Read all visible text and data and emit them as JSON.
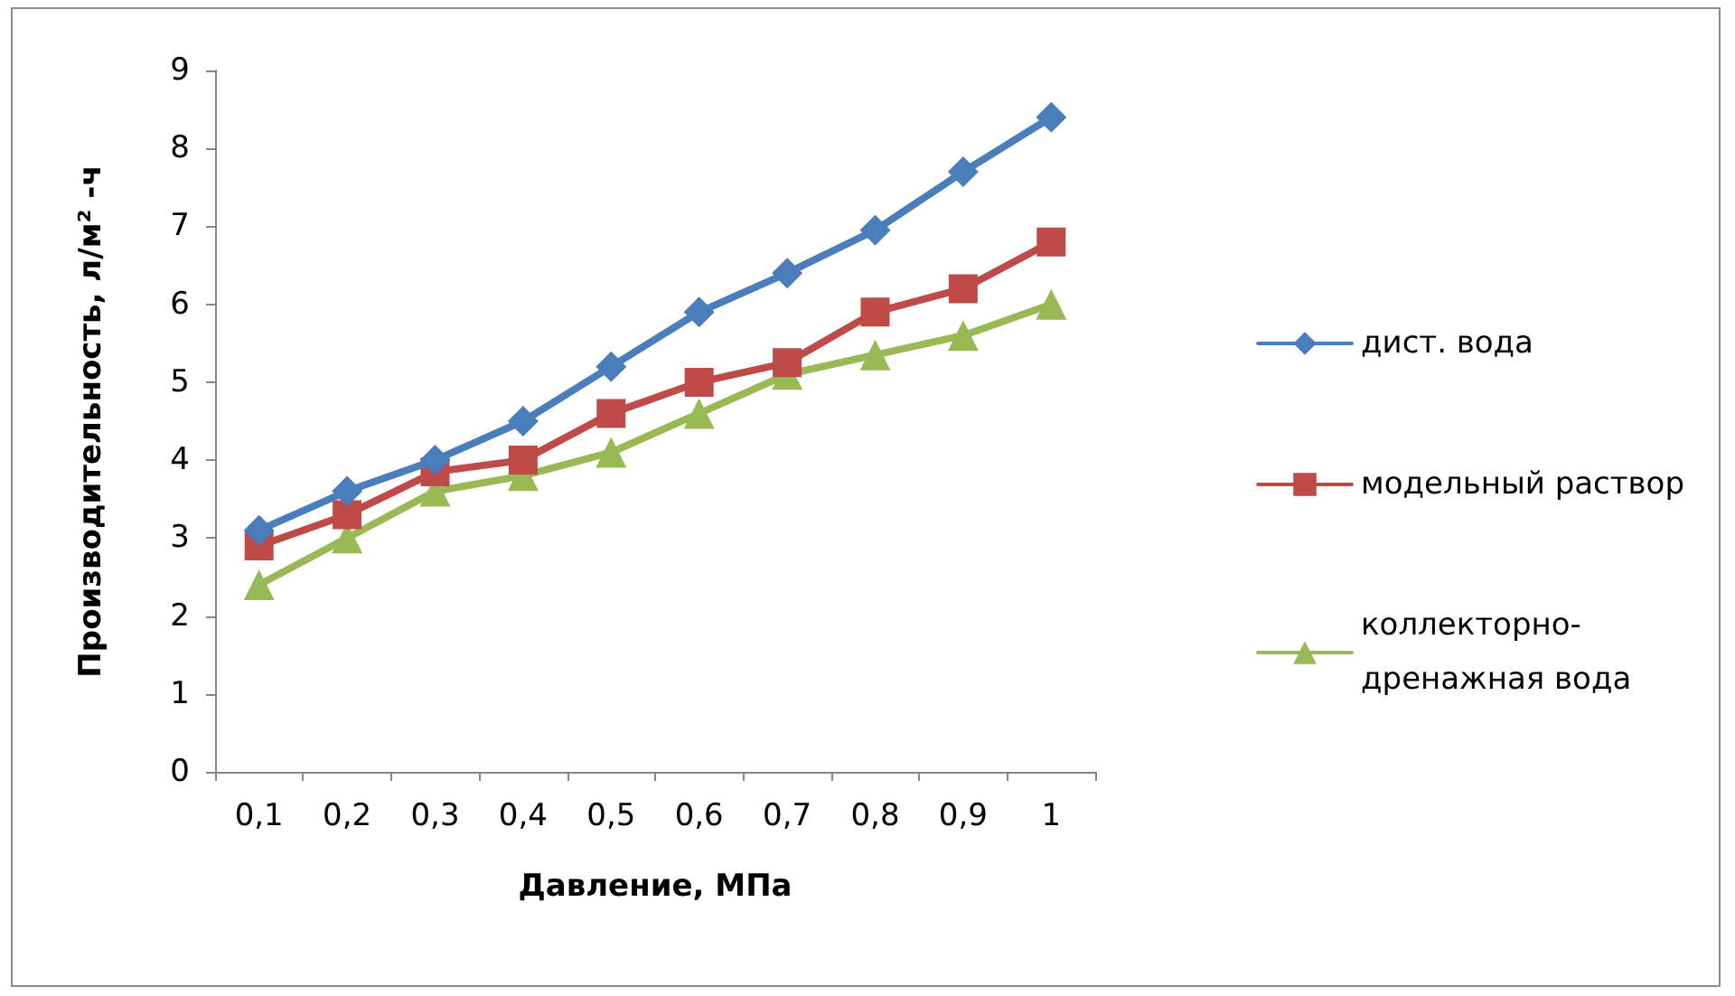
{
  "chart_data": {
    "type": "line",
    "xlabel": "Давление, МПа",
    "ylabel": "Производительность, л/м² -ч",
    "categories": [
      "0,1",
      "0,2",
      "0,3",
      "0,4",
      "0,5",
      "0,6",
      "0,7",
      "0,8",
      "0,9",
      "1"
    ],
    "ylim": [
      0,
      9
    ],
    "yticks": [
      0,
      1,
      2,
      3,
      4,
      5,
      6,
      7,
      8,
      9
    ],
    "grid": false,
    "legend": "right",
    "line_style": "solid",
    "series": [
      {
        "name": "дист. вода",
        "color": "#4a7ebb",
        "marker": "diamond",
        "values": [
          3.1,
          3.6,
          4.0,
          4.5,
          5.2,
          5.9,
          6.4,
          6.95,
          7.7,
          8.4
        ]
      },
      {
        "name": "модельный раствор",
        "color": "#be4b48",
        "marker": "square",
        "values": [
          2.9,
          3.3,
          3.85,
          4.0,
          4.6,
          5.0,
          5.25,
          5.9,
          6.2,
          6.8
        ]
      },
      {
        "name": "коллекторно-дренажная вода",
        "color": "#98b954",
        "marker": "triangle",
        "values": [
          2.4,
          3.0,
          3.6,
          3.8,
          4.1,
          4.6,
          5.1,
          5.35,
          5.6,
          6.0
        ]
      }
    ]
  }
}
